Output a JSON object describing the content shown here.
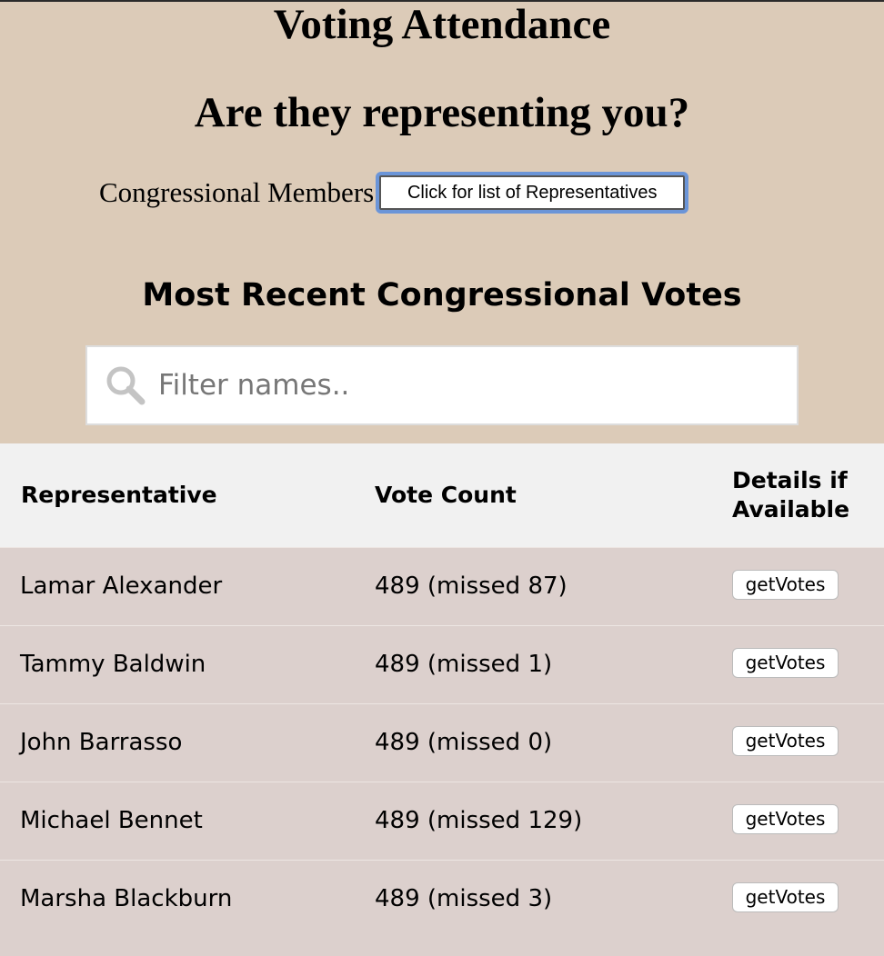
{
  "header": {
    "title": "Voting Attendance",
    "subtitle": "Are they representing you?",
    "members_label": "Congressional Members",
    "reps_button_label": "Click for list of Representatives",
    "section_title": "Most Recent Congressional Votes"
  },
  "search": {
    "icon": "search-icon",
    "placeholder": "Filter names.."
  },
  "table": {
    "columns": [
      "Representative",
      "Vote Count",
      "Details if Available"
    ],
    "rows": [
      {
        "name": "Lamar Alexander",
        "votes": "489 (missed 87)",
        "action": "getVotes"
      },
      {
        "name": "Tammy Baldwin",
        "votes": "489 (missed 1)",
        "action": "getVotes"
      },
      {
        "name": "John Barrasso",
        "votes": "489 (missed 0)",
        "action": "getVotes"
      },
      {
        "name": "Michael Bennet",
        "votes": "489 (missed 129)",
        "action": "getVotes"
      },
      {
        "name": "Marsha Blackburn",
        "votes": "489 (missed 3)",
        "action": "getVotes"
      }
    ]
  },
  "colors": {
    "header_bg": "#dccbb8",
    "table_header_bg": "#f1f1f1",
    "row_bg": "#dcd0cd",
    "focus_ring": "#6b95d8"
  }
}
